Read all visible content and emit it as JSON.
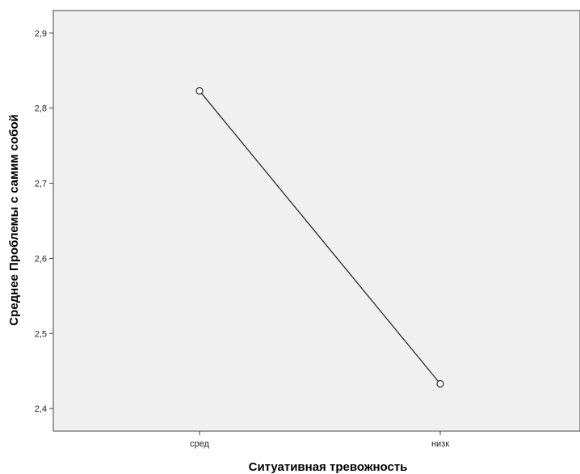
{
  "chart_data": {
    "type": "line",
    "categories": [
      "сред",
      "низк"
    ],
    "series": [
      {
        "values": [
          2.823,
          2.433
        ]
      }
    ],
    "xlabel": "Ситуативная тревожность",
    "ylabel": "Среднее Проблемы с самим собой",
    "ylim": [
      2.37,
      2.93
    ],
    "yticks": [
      "2,4",
      "2,5",
      "2,6",
      "2,7",
      "2,8",
      "2,9"
    ],
    "ytick_values": [
      2.4,
      2.5,
      2.6,
      2.7,
      2.8,
      2.9
    ],
    "grid": false,
    "legend": "none",
    "colors": {
      "plot_bg": "#f0f0f0",
      "line": "#2b2b2b",
      "axis": "#444444",
      "marker_fill": "#ffffff"
    }
  }
}
